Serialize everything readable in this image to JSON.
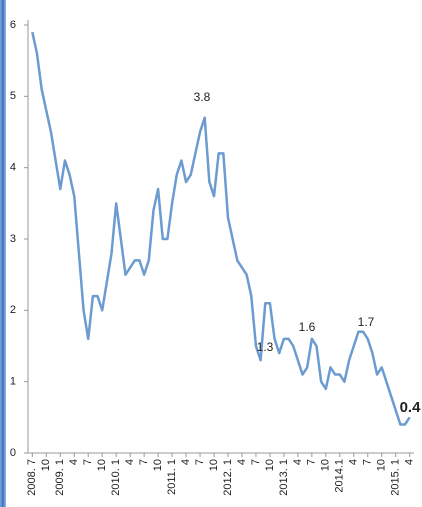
{
  "chart_data": {
    "type": "line",
    "categories": [
      "2008. 7",
      null,
      null,
      "10",
      null,
      null,
      "2009. 1",
      null,
      null,
      "4",
      null,
      null,
      "7",
      null,
      null,
      "10",
      null,
      null,
      "2010. 1",
      null,
      null,
      "4",
      null,
      null,
      "7",
      null,
      null,
      "10",
      null,
      null,
      "2011. 1",
      null,
      null,
      "4",
      null,
      null,
      "7",
      null,
      null,
      "10",
      null,
      null,
      "2012. 1",
      null,
      null,
      "4",
      null,
      null,
      "7",
      null,
      null,
      "10",
      null,
      null,
      "2013. 1",
      null,
      null,
      "4",
      null,
      null,
      "7",
      null,
      null,
      "10",
      null,
      null,
      "2014.1",
      null,
      null,
      "4",
      null,
      null,
      "7",
      null,
      null,
      "10",
      null,
      null,
      "2015. 1",
      null,
      null,
      "4"
    ],
    "values": [
      5.9,
      5.6,
      5.1,
      4.8,
      4.5,
      4.1,
      3.7,
      4.1,
      3.9,
      3.6,
      2.8,
      2.0,
      1.6,
      2.2,
      2.2,
      2.0,
      2.4,
      2.8,
      3.5,
      3.0,
      2.5,
      2.6,
      2.7,
      2.7,
      2.5,
      2.7,
      3.4,
      3.7,
      3.0,
      3.0,
      3.5,
      3.9,
      4.1,
      3.8,
      3.9,
      4.2,
      4.5,
      4.7,
      3.8,
      3.6,
      4.2,
      4.2,
      3.3,
      3.0,
      2.7,
      2.6,
      2.5,
      2.2,
      1.5,
      1.3,
      2.1,
      2.1,
      1.6,
      1.4,
      1.6,
      1.6,
      1.5,
      1.3,
      1.1,
      1.2,
      1.6,
      1.5,
      1.0,
      0.9,
      1.2,
      1.1,
      1.1,
      1.0,
      1.3,
      1.5,
      1.7,
      1.7,
      1.6,
      1.4,
      1.1,
      1.2,
      1.0,
      0.8,
      0.6,
      0.4,
      0.4,
      0.5
    ],
    "color": "#6b9bd1",
    "ylim": [
      0,
      6
    ],
    "yticks": [
      0,
      1,
      2,
      3,
      4,
      5,
      6
    ],
    "annotations": [
      "3.8",
      "1.3",
      "1.6",
      "1.7",
      "0.4"
    ]
  }
}
